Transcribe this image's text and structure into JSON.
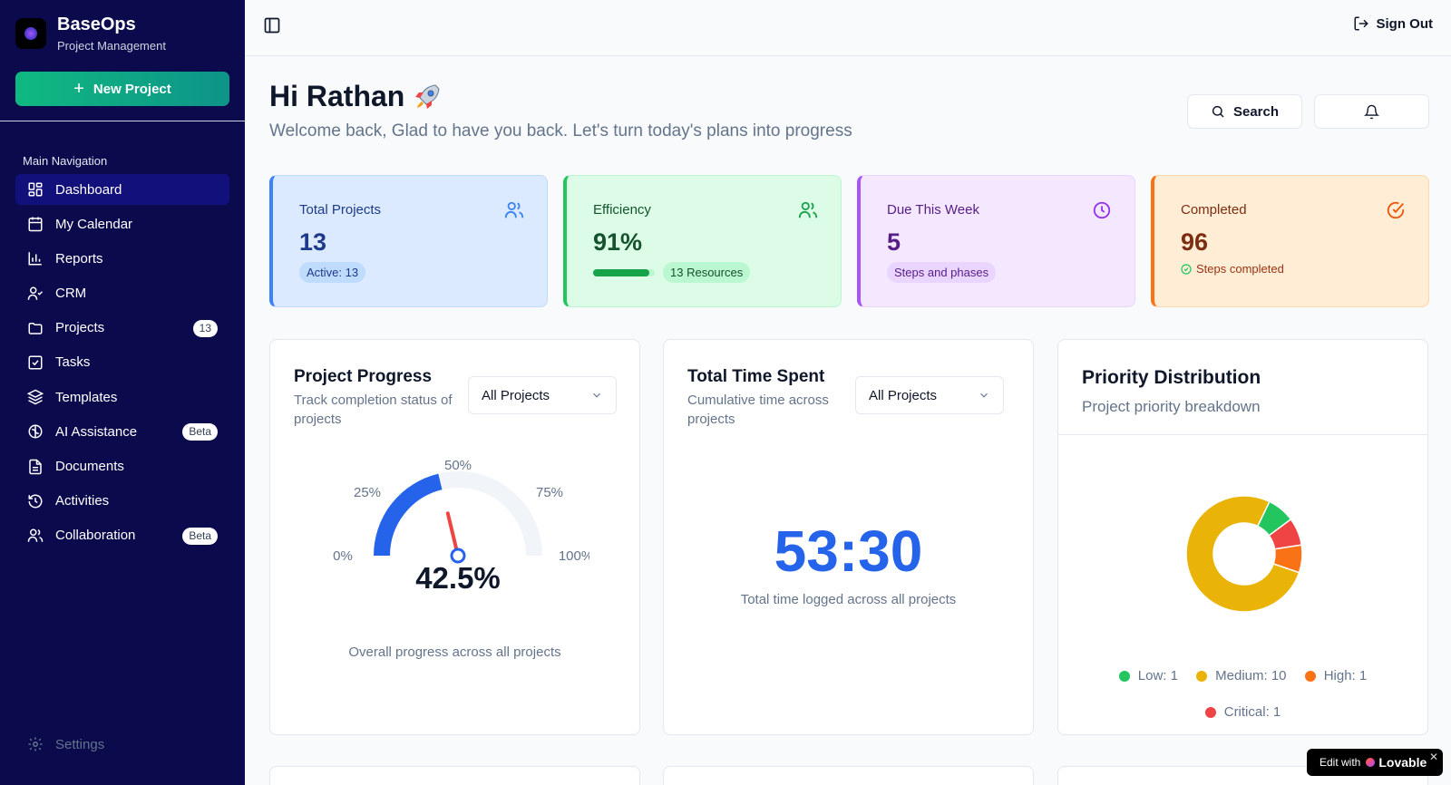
{
  "brand": {
    "name": "BaseOps",
    "subtitle": "Project Management"
  },
  "sidebar": {
    "new_project_label": "New Project",
    "nav_heading": "Main Navigation",
    "items": [
      {
        "label": "Dashboard",
        "icon": "dashboard-icon",
        "active": true
      },
      {
        "label": "My Calendar",
        "icon": "calendar-icon"
      },
      {
        "label": "Reports",
        "icon": "bar-chart-icon"
      },
      {
        "label": "CRM",
        "icon": "user-check-icon"
      },
      {
        "label": "Projects",
        "icon": "folder-icon",
        "badge": "13"
      },
      {
        "label": "Tasks",
        "icon": "checkbox-icon"
      },
      {
        "label": "Templates",
        "icon": "layers-icon"
      },
      {
        "label": "AI Assistance",
        "icon": "brain-icon",
        "badge": "Beta"
      },
      {
        "label": "Documents",
        "icon": "document-icon"
      },
      {
        "label": "Activities",
        "icon": "history-icon"
      },
      {
        "label": "Collaboration",
        "icon": "users-icon",
        "badge": "Beta"
      }
    ],
    "settings_label": "Settings"
  },
  "topbar": {
    "sign_out_label": "Sign Out"
  },
  "header": {
    "greeting": "Hi Rathan",
    "welcome": "Welcome back, Glad to have you back. Let's turn today's plans into progress",
    "search_label": "Search"
  },
  "stats": {
    "total_projects": {
      "label": "Total Projects",
      "value": "13",
      "pill": "Active: 13"
    },
    "efficiency": {
      "label": "Efficiency",
      "value": "91%",
      "progress": 0.91,
      "pill": "13 Resources"
    },
    "due_this_week": {
      "label": "Due This Week",
      "value": "5",
      "pill": "Steps and phases"
    },
    "completed": {
      "label": "Completed",
      "value": "96",
      "note": "Steps completed"
    }
  },
  "project_progress": {
    "title": "Project Progress",
    "subtitle": "Track completion status of projects",
    "filter": "All Projects",
    "value": 42.5,
    "value_label": "42.5%",
    "ticks": [
      "0%",
      "25%",
      "50%",
      "75%",
      "100%"
    ],
    "caption": "Overall progress across all projects"
  },
  "time_spent": {
    "title": "Total Time Spent",
    "subtitle": "Cumulative time across projects",
    "filter": "All Projects",
    "value": "53:30",
    "caption": "Total time logged across all projects"
  },
  "priority": {
    "title": "Priority Distribution",
    "subtitle": "Project priority breakdown",
    "legend": [
      {
        "label": "Low: 1",
        "color": "#22c55e"
      },
      {
        "label": "Medium: 10",
        "color": "#eab308"
      },
      {
        "label": "High: 1",
        "color": "#f97316"
      },
      {
        "label": "Critical: 1",
        "color": "#ef4444"
      }
    ]
  },
  "chart_data": {
    "type": "pie",
    "categories": [
      "Low",
      "Medium",
      "High",
      "Critical"
    ],
    "values": [
      1,
      10,
      1,
      1
    ],
    "colors": [
      "#22c55e",
      "#eab308",
      "#f97316",
      "#ef4444"
    ]
  },
  "badge": {
    "prefix": "Edit with",
    "brand": "Lovable"
  }
}
